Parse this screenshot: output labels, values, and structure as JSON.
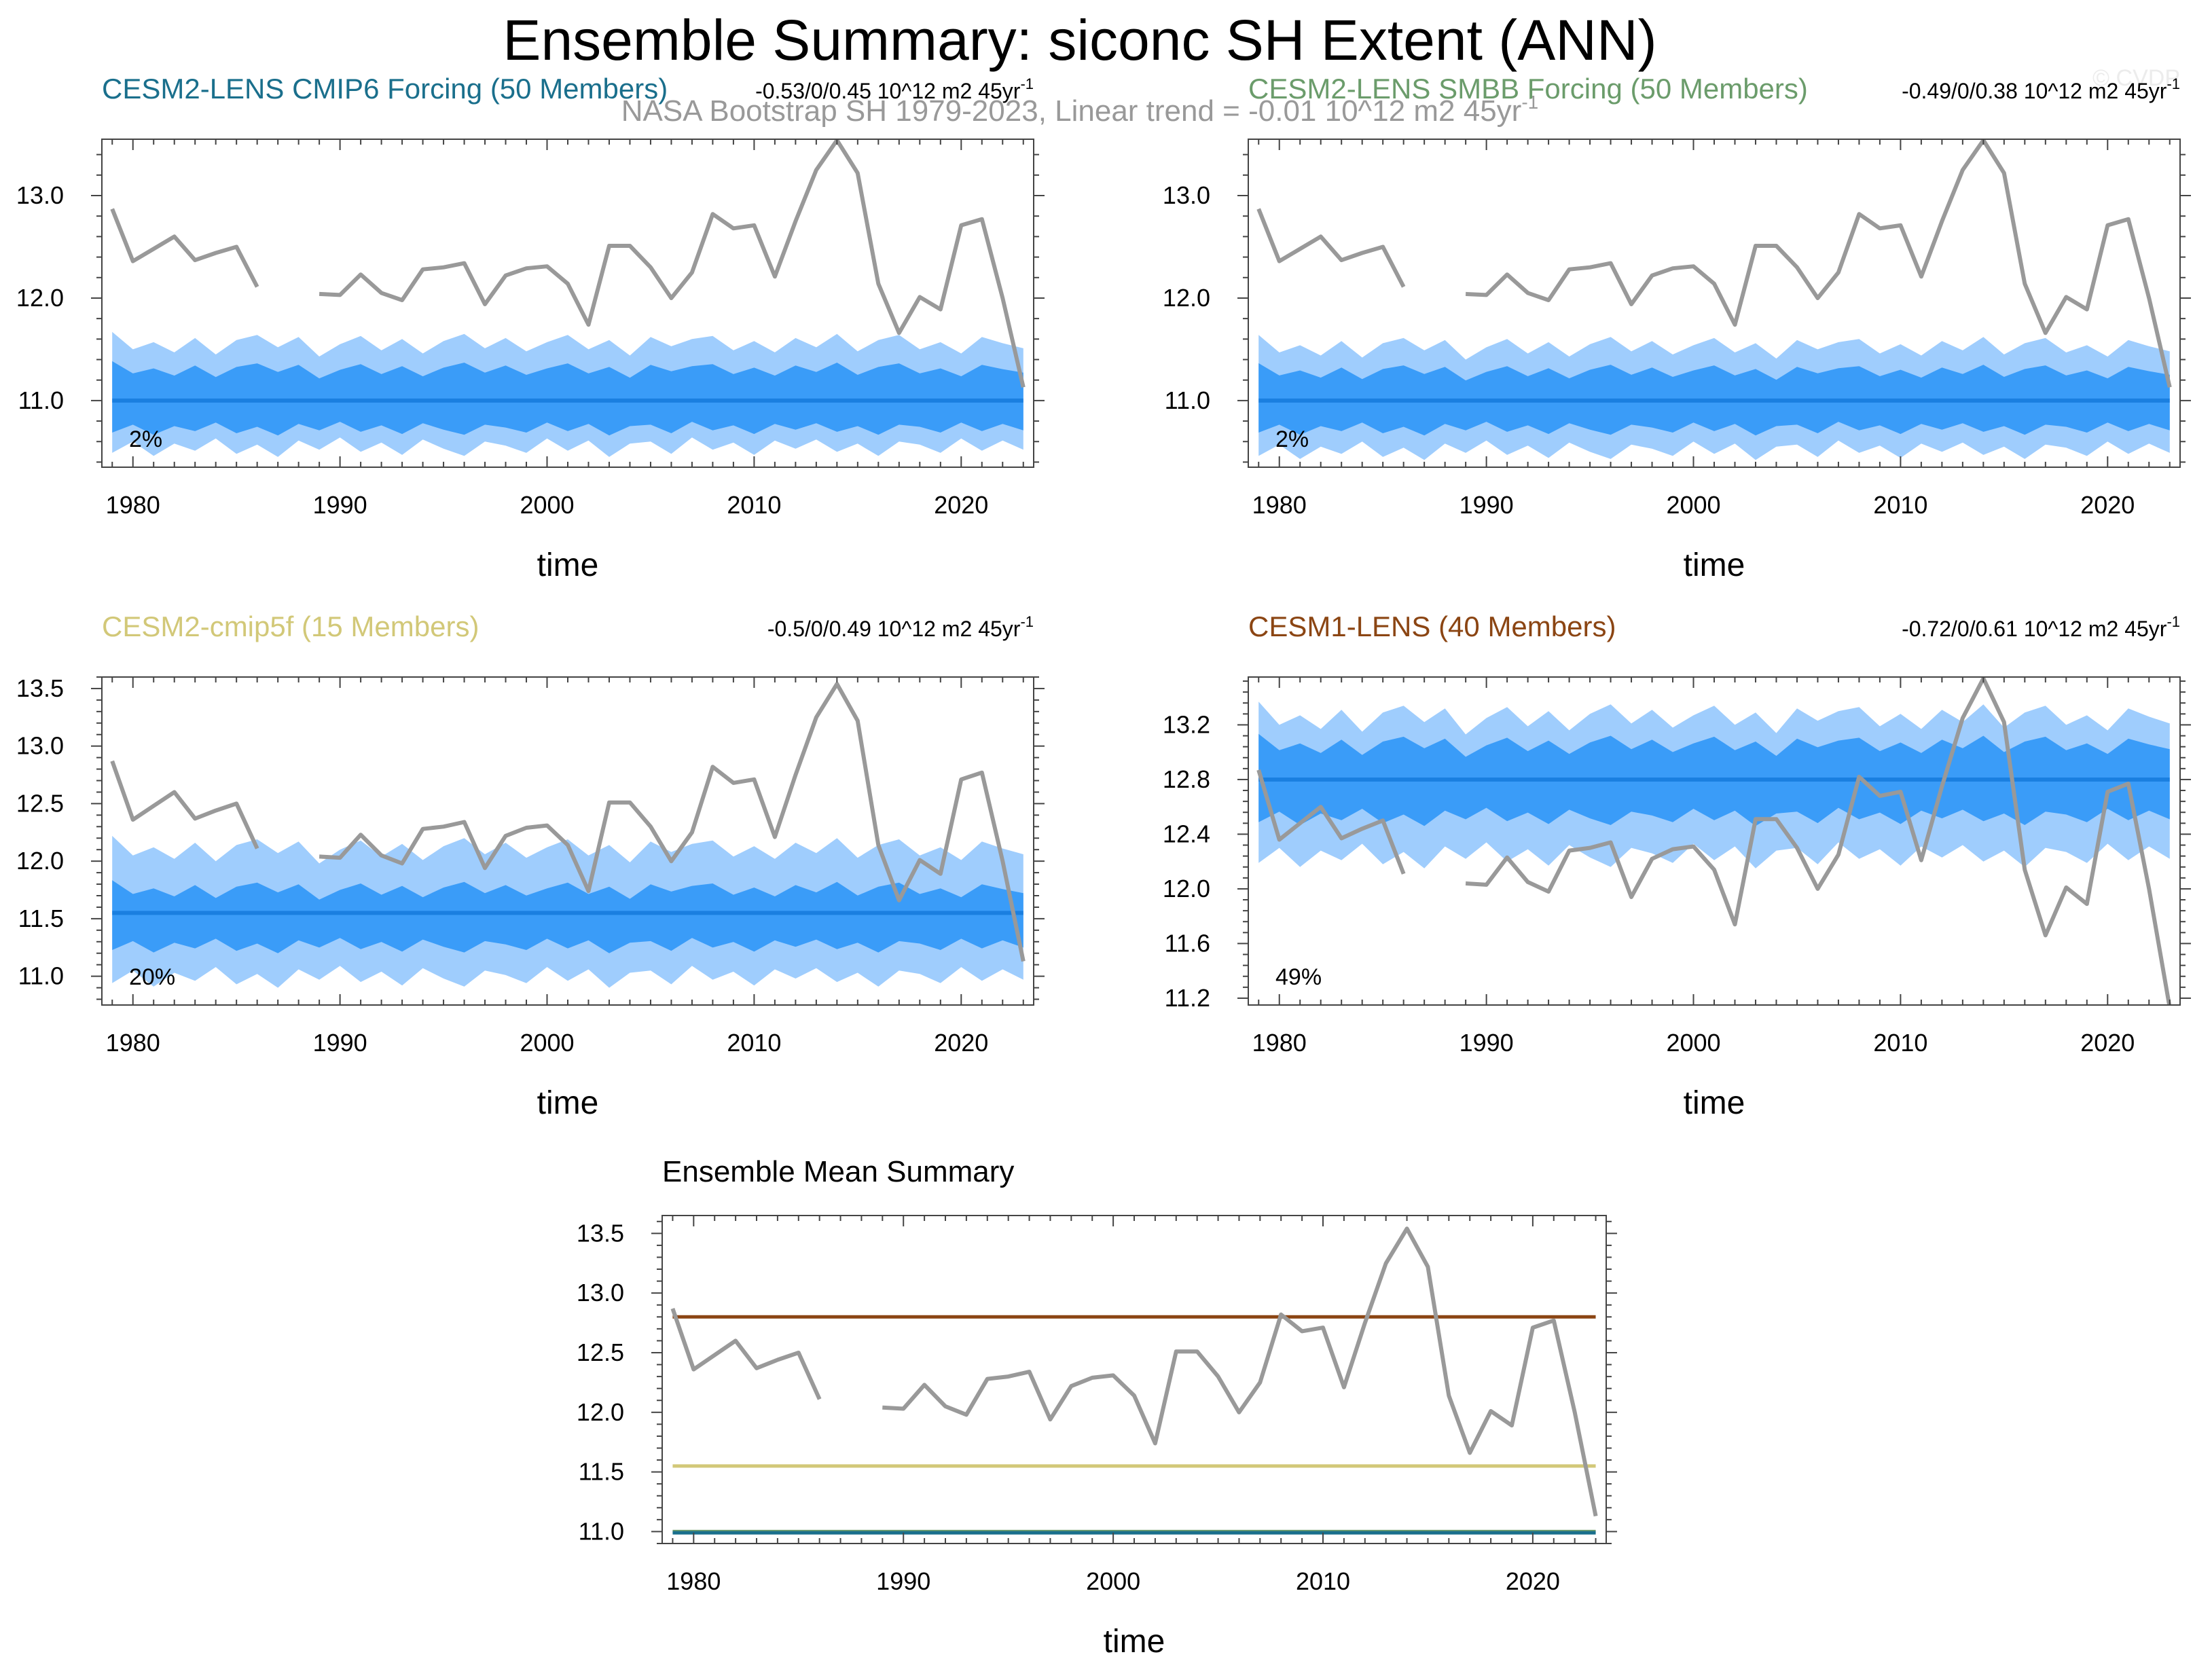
{
  "figure": {
    "title": "Ensemble Summary: siconc SH Extent (ANN)",
    "subtitle": "NASA Bootstrap SH 1979-2023, Linear trend = -0.01 10^12 m2 45yr",
    "subtitle_sup": "-1",
    "watermark": "© CVDP"
  },
  "colors": {
    "light_band": "#9fcdfd",
    "dark_band": "#3a9cf8",
    "ens_mean_line": "#1a7fe0",
    "obs_line": "#999999",
    "axis": "#444444",
    "cesm2_lens_cmip6": "#1a6f8c",
    "cesm2_lens_smbb": "#6b9c6b",
    "cesm2_cmip5f": "#d2c878",
    "cesm1_lens": "#8b4513"
  },
  "observations": {
    "name": "NASA Bootstrap SH",
    "years": [
      1979,
      1980,
      1981,
      1982,
      1983,
      1984,
      1985,
      1986,
      1987,
      1988,
      1989,
      1990,
      1991,
      1992,
      1993,
      1994,
      1995,
      1996,
      1997,
      1998,
      1999,
      2000,
      2001,
      2002,
      2003,
      2004,
      2005,
      2006,
      2007,
      2008,
      2009,
      2010,
      2011,
      2012,
      2013,
      2014,
      2015,
      2016,
      2017,
      2018,
      2019,
      2020,
      2021,
      2022,
      2023
    ],
    "values": [
      12.87,
      12.36,
      12.48,
      12.6,
      12.37,
      12.44,
      12.5,
      12.11,
      null,
      null,
      12.04,
      12.03,
      12.23,
      12.05,
      11.98,
      12.28,
      12.3,
      12.34,
      11.94,
      12.22,
      12.29,
      12.31,
      12.14,
      11.74,
      12.51,
      12.51,
      12.3,
      12.0,
      12.25,
      12.82,
      12.68,
      12.71,
      12.21,
      12.75,
      13.25,
      13.54,
      13.22,
      12.14,
      11.66,
      12.01,
      11.89,
      12.71,
      12.77,
      12.0,
      11.13
    ]
  },
  "chart_data": [
    {
      "type": "area",
      "id": "p1",
      "title": "CESM2-LENS CMIP6 Forcing (50 Members)",
      "title_color": "#1a6f8c",
      "trend_label": "-0.53/0/0.45 10^12 m2 45yr",
      "trend_sup": "-1",
      "percent_label": "2%",
      "xlabel": "time",
      "ylabel": "",
      "xlim": [
        1978.5,
        2023.5
      ],
      "ylim": [
        10.35,
        13.55
      ],
      "xticks": [
        1980,
        1990,
        2000,
        2010,
        2020
      ],
      "yticks": [
        11.0,
        12.0,
        13.0
      ],
      "ytick_labels": [
        "11.0",
        "12.0",
        "13.0"
      ],
      "ensemble_mean": 11.0,
      "series": [
        {
          "name": "10-90 percentile (light band)",
          "lower_dev": -0.45,
          "upper_dev": 0.55
        },
        {
          "name": "25-75 percentile (dark band)",
          "lower_dev": -0.27,
          "upper_dev": 0.3
        },
        {
          "name": "Ensemble mean",
          "value": 11.0
        },
        {
          "name": "NASA Bootstrap SH",
          "ref": "observations"
        }
      ]
    },
    {
      "type": "area",
      "id": "p2",
      "title": "CESM2-LENS SMBB Forcing (50 Members)",
      "title_color": "#6b9c6b",
      "trend_label": "-0.49/0/0.38 10^12 m2 45yr",
      "trend_sup": "-1",
      "percent_label": "2%",
      "xlabel": "time",
      "ylabel": "",
      "xlim": [
        1978.5,
        2023.5
      ],
      "ylim": [
        10.35,
        13.55
      ],
      "xticks": [
        1980,
        1990,
        2000,
        2010,
        2020
      ],
      "yticks": [
        11.0,
        12.0,
        13.0
      ],
      "ytick_labels": [
        "11.0",
        "12.0",
        "13.0"
      ],
      "ensemble_mean": 11.0,
      "series": [
        {
          "name": "10-90 percentile (light band)",
          "lower_dev": -0.48,
          "upper_dev": 0.52
        },
        {
          "name": "25-75 percentile (dark band)",
          "lower_dev": -0.27,
          "upper_dev": 0.28
        },
        {
          "name": "Ensemble mean",
          "value": 11.0
        },
        {
          "name": "NASA Bootstrap SH",
          "ref": "observations"
        }
      ]
    },
    {
      "type": "area",
      "id": "p3",
      "title": "CESM2-cmip5f (15 Members)",
      "title_color": "#d2c878",
      "trend_label": "-0.5/0/0.49 10^12 m2 45yr",
      "trend_sup": "-1",
      "percent_label": "20%",
      "xlabel": "time",
      "ylabel": "",
      "xlim": [
        1978.5,
        2023.5
      ],
      "ylim": [
        10.75,
        13.6
      ],
      "xticks": [
        1980,
        1990,
        2000,
        2010,
        2020
      ],
      "yticks": [
        11.0,
        11.5,
        12.0,
        12.5,
        13.0,
        13.5
      ],
      "ytick_labels": [
        "11.0",
        "11.5",
        "12.0",
        "12.5",
        "13.0",
        "13.5"
      ],
      "ensemble_mean": 11.55,
      "series": [
        {
          "name": "10-90 percentile (light band)",
          "lower_dev": -0.55,
          "upper_dev": 0.55
        },
        {
          "name": "25-75 percentile (dark band)",
          "lower_dev": -0.28,
          "upper_dev": 0.2
        },
        {
          "name": "Ensemble mean",
          "value": 11.55
        },
        {
          "name": "NASA Bootstrap SH",
          "ref": "observations"
        }
      ]
    },
    {
      "type": "area",
      "id": "p4",
      "title": "CESM1-LENS (40 Members)",
      "title_color": "#8b4513",
      "trend_label": "-0.72/0/0.61 10^12 m2 45yr",
      "trend_sup": "-1",
      "percent_label": "49%",
      "xlabel": "time",
      "ylabel": "",
      "xlim": [
        1978.5,
        2023.5
      ],
      "ylim": [
        11.15,
        13.55
      ],
      "xticks": [
        1980,
        1990,
        2000,
        2010,
        2020
      ],
      "yticks": [
        11.2,
        11.6,
        12.0,
        12.4,
        12.8,
        13.2
      ],
      "ytick_labels": [
        "11.2",
        "11.6",
        "12.0",
        "12.4",
        "12.8",
        "13.2"
      ],
      "ensemble_mean": 12.8,
      "series": [
        {
          "name": "10-90 percentile (light band)",
          "lower_dev": -0.55,
          "upper_dev": 0.45
        },
        {
          "name": "25-75 percentile (dark band)",
          "lower_dev": -0.27,
          "upper_dev": 0.25
        },
        {
          "name": "Ensemble mean",
          "value": 12.8
        },
        {
          "name": "NASA Bootstrap SH",
          "ref": "observations"
        }
      ]
    },
    {
      "type": "line",
      "id": "p5",
      "title": "Ensemble Mean Summary",
      "title_color": "#000000",
      "xlabel": "time",
      "ylabel": "",
      "xlim": [
        1978.5,
        2023.5
      ],
      "ylim": [
        10.9,
        13.65
      ],
      "xticks": [
        1980,
        1990,
        2000,
        2010,
        2020
      ],
      "yticks": [
        11.0,
        11.5,
        12.0,
        12.5,
        13.0,
        13.5
      ],
      "ytick_labels": [
        "11.0",
        "11.5",
        "12.0",
        "12.5",
        "13.0",
        "13.5"
      ],
      "series": [
        {
          "name": "CESM1-LENS",
          "value": 12.8,
          "color": "#8b4513"
        },
        {
          "name": "CESM2-cmip5f",
          "value": 11.55,
          "color": "#d2c878"
        },
        {
          "name": "CESM2-LENS SMBB Forcing",
          "value": 11.0,
          "color": "#6b9c6b"
        },
        {
          "name": "CESM2-LENS CMIP6 Forcing",
          "value": 10.99,
          "color": "#1a6f8c"
        },
        {
          "name": "NASA Bootstrap SH",
          "ref": "observations",
          "color": "#999999"
        }
      ]
    }
  ]
}
